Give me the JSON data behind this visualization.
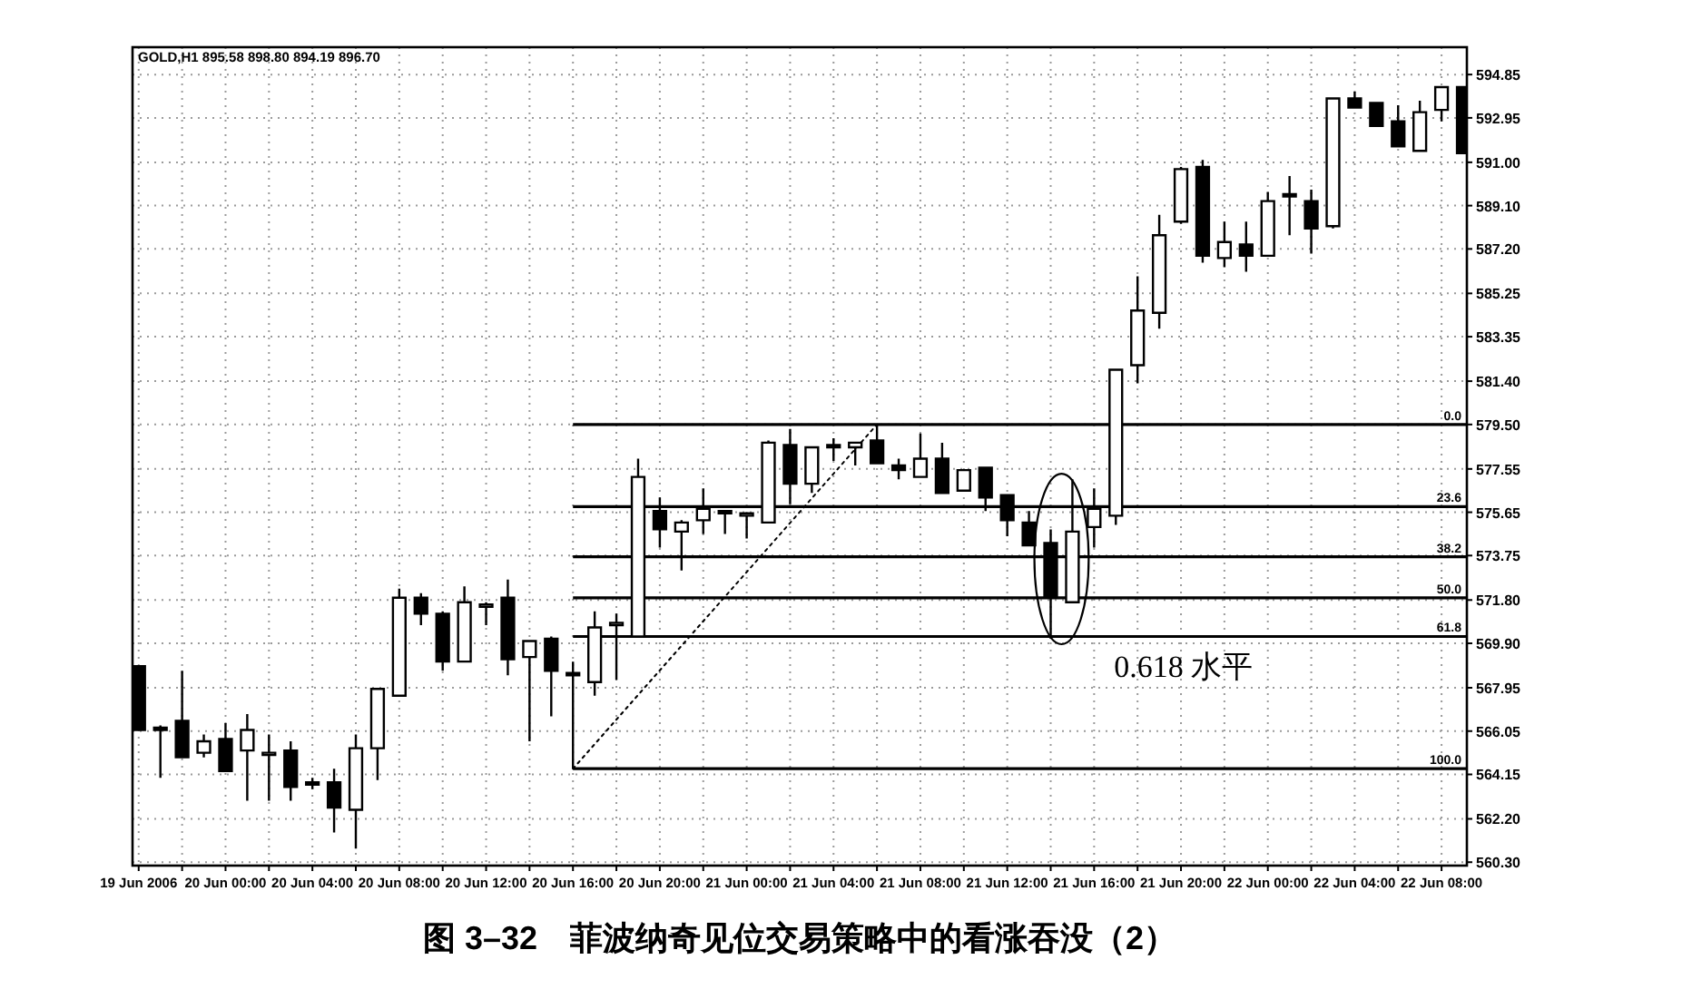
{
  "chart_data": {
    "type": "candlestick",
    "title": "图 3–32　菲波纳奇见位交易策略中的看涨吞没（2）",
    "subtitle": "GOLD,H1 895.58 898.80 894.19 896.70",
    "annotations": [
      {
        "text": "0.0",
        "y": 579.5
      },
      {
        "text": "23.6",
        "y": 575.9
      },
      {
        "text": "38.2",
        "y": 573.7
      },
      {
        "text": "50.0",
        "y": 571.9
      },
      {
        "text": "61.8",
        "y": 570.2
      },
      {
        "text": "100.0",
        "y": 564.4
      },
      "0.618 水平"
    ],
    "x": [
      "2006-06-19T20:00",
      "2006-06-19T21:00",
      "2006-06-19T22:00",
      "2006-06-19T23:00",
      "2006-06-20T00:00",
      "2006-06-20T01:00",
      "2006-06-20T02:00",
      "2006-06-20T03:00",
      "2006-06-20T04:00",
      "2006-06-20T05:00",
      "2006-06-20T06:00",
      "2006-06-20T07:00",
      "2006-06-20T08:00",
      "2006-06-20T09:00",
      "2006-06-20T10:00",
      "2006-06-20T11:00",
      "2006-06-20T12:00",
      "2006-06-20T13:00",
      "2006-06-20T14:00",
      "2006-06-20T15:00",
      "2006-06-20T16:00",
      "2006-06-20T17:00",
      "2006-06-20T18:00",
      "2006-06-20T19:00",
      "2006-06-20T20:00",
      "2006-06-20T21:00",
      "2006-06-20T22:00",
      "2006-06-20T23:00",
      "2006-06-21T00:00",
      "2006-06-21T01:00",
      "2006-06-21T02:00",
      "2006-06-21T03:00",
      "2006-06-21T04:00",
      "2006-06-21T05:00",
      "2006-06-21T06:00",
      "2006-06-21T07:00",
      "2006-06-21T08:00",
      "2006-06-21T09:00",
      "2006-06-21T10:00",
      "2006-06-21T11:00",
      "2006-06-21T12:00",
      "2006-06-21T13:00",
      "2006-06-21T14:00",
      "2006-06-21T15:00",
      "2006-06-21T16:00",
      "2006-06-21T17:00",
      "2006-06-21T18:00",
      "2006-06-21T19:00",
      "2006-06-21T20:00",
      "2006-06-21T21:00",
      "2006-06-21T22:00",
      "2006-06-21T23:00",
      "2006-06-22T00:00",
      "2006-06-22T01:00",
      "2006-06-22T02:00",
      "2006-06-22T03:00",
      "2006-06-22T04:00",
      "2006-06-22T05:00",
      "2006-06-22T06:00",
      "2006-06-22T07:00",
      "2006-06-22T08:00",
      "2006-06-22T09:00"
    ],
    "ohlc": [
      [
        568.9,
        568.9,
        566.1,
        566.1
      ],
      [
        566.1,
        566.3,
        564.0,
        566.2
      ],
      [
        566.5,
        568.7,
        564.9,
        564.9
      ],
      [
        565.1,
        565.9,
        564.9,
        565.6
      ],
      [
        565.7,
        566.4,
        564.3,
        564.3
      ],
      [
        565.2,
        566.8,
        563.0,
        566.1
      ],
      [
        565.0,
        565.9,
        563.0,
        565.1
      ],
      [
        565.2,
        565.6,
        563.0,
        563.6
      ],
      [
        563.7,
        564.0,
        563.5,
        563.8
      ],
      [
        563.8,
        564.4,
        561.6,
        562.7
      ],
      [
        562.6,
        565.9,
        560.9,
        565.3
      ],
      [
        565.3,
        567.9,
        563.9,
        567.9
      ],
      [
        567.6,
        572.3,
        567.6,
        571.9
      ],
      [
        571.9,
        572.1,
        570.7,
        571.2
      ],
      [
        571.2,
        571.3,
        568.7,
        569.1
      ],
      [
        569.1,
        572.4,
        569.1,
        571.7
      ],
      [
        571.5,
        571.7,
        570.7,
        571.6
      ],
      [
        571.9,
        572.7,
        568.5,
        569.2
      ],
      [
        569.3,
        570.0,
        565.6,
        570.0
      ],
      [
        570.1,
        570.2,
        566.7,
        568.7
      ],
      [
        568.5,
        569.1,
        564.4,
        568.6
      ],
      [
        568.2,
        571.3,
        567.6,
        570.6
      ],
      [
        570.7,
        571.2,
        568.3,
        570.8
      ],
      [
        570.2,
        578.0,
        570.2,
        577.2
      ],
      [
        575.7,
        576.3,
        574.1,
        574.9
      ],
      [
        574.8,
        575.3,
        573.1,
        575.2
      ],
      [
        575.3,
        576.7,
        574.7,
        575.8
      ],
      [
        575.7,
        575.7,
        574.7,
        575.6
      ],
      [
        575.5,
        575.6,
        574.5,
        575.6
      ],
      [
        575.2,
        578.8,
        575.2,
        578.7
      ],
      [
        578.6,
        579.3,
        576.0,
        576.9
      ],
      [
        576.9,
        578.5,
        576.5,
        578.5
      ],
      [
        578.5,
        578.9,
        577.9,
        578.6
      ],
      [
        578.5,
        578.7,
        577.7,
        578.7
      ],
      [
        578.8,
        579.5,
        577.8,
        577.8
      ],
      [
        577.7,
        578.0,
        577.1,
        577.5
      ],
      [
        577.2,
        579.1,
        577.2,
        578.0
      ],
      [
        578.0,
        578.7,
        576.5,
        576.5
      ],
      [
        576.6,
        577.5,
        576.6,
        577.5
      ],
      [
        577.6,
        577.6,
        575.7,
        576.3
      ],
      [
        576.4,
        576.4,
        574.6,
        575.3
      ],
      [
        575.2,
        575.7,
        574.2,
        574.2
      ],
      [
        574.3,
        574.9,
        570.1,
        571.9
      ],
      [
        571.7,
        577.1,
        571.7,
        574.8
      ],
      [
        575.0,
        576.7,
        574.1,
        575.8
      ],
      [
        575.5,
        581.9,
        575.1,
        581.9
      ],
      [
        582.1,
        586.0,
        581.3,
        584.5
      ],
      [
        584.4,
        588.7,
        583.7,
        587.8
      ],
      [
        588.4,
        590.8,
        588.3,
        590.7
      ],
      [
        590.8,
        591.1,
        586.6,
        586.9
      ],
      [
        586.8,
        588.4,
        586.4,
        587.5
      ],
      [
        587.4,
        588.4,
        586.2,
        586.9
      ],
      [
        586.9,
        589.7,
        586.9,
        589.3
      ],
      [
        589.5,
        590.4,
        587.8,
        589.6
      ],
      [
        589.3,
        589.8,
        587.0,
        588.1
      ],
      [
        588.2,
        593.8,
        588.1,
        593.8
      ],
      [
        593.8,
        594.1,
        593.4,
        593.4
      ],
      [
        593.6,
        593.6,
        592.6,
        592.6
      ],
      [
        592.8,
        593.5,
        591.7,
        591.7
      ],
      [
        591.5,
        593.7,
        591.5,
        593.2
      ],
      [
        593.3,
        594.3,
        592.8,
        594.3
      ],
      [
        594.3,
        594.3,
        591.4,
        591.4
      ]
    ],
    "series": [
      {
        "type": "line",
        "x": [
          "2006-06-20T16:00",
          "2006-06-21T06:00"
        ],
        "values": [
          564.4,
          579.5
        ],
        "color": "#000000",
        "line_style": "dotted"
      }
    ],
    "xlim": [
      "2006-06-19T19:43",
      "2006-06-22T09:10"
    ],
    "xticks": [
      {
        "value": "2006-06-19T20:00",
        "label": "19 Jun 2006"
      },
      {
        "value": "2006-06-19T22:00",
        "label": null
      },
      {
        "value": "2006-06-20T00:00",
        "label": "20 Jun 00:00"
      },
      {
        "value": "2006-06-20T02:00",
        "label": null
      },
      {
        "value": "2006-06-20T04:00",
        "label": "20 Jun 04:00"
      },
      {
        "value": "2006-06-20T06:00",
        "label": null
      },
      {
        "value": "2006-06-20T08:00",
        "label": "20 Jun 08:00"
      },
      {
        "value": "2006-06-20T10:00",
        "label": null
      },
      {
        "value": "2006-06-20T12:00",
        "label": "20 Jun 12:00"
      },
      {
        "value": "2006-06-20T14:00",
        "label": null
      },
      {
        "value": "2006-06-20T16:00",
        "label": "20 Jun 16:00"
      },
      {
        "value": "2006-06-20T18:00",
        "label": null
      },
      {
        "value": "2006-06-20T20:00",
        "label": "20 Jun 20:00"
      },
      {
        "value": "2006-06-20T22:00",
        "label": null
      },
      {
        "value": "2006-06-21T00:00",
        "label": "21 Jun 00:00"
      },
      {
        "value": "2006-06-21T02:00",
        "label": null
      },
      {
        "value": "2006-06-21T04:00",
        "label": "21 Jun 04:00"
      },
      {
        "value": "2006-06-21T06:00",
        "label": null
      },
      {
        "value": "2006-06-21T08:00",
        "label": "21 Jun 08:00"
      },
      {
        "value": "2006-06-21T10:00",
        "label": null
      },
      {
        "value": "2006-06-21T12:00",
        "label": "21 Jun 12:00"
      },
      {
        "value": "2006-06-21T14:00",
        "label": null
      },
      {
        "value": "2006-06-21T16:00",
        "label": "21 Jun 16:00"
      },
      {
        "value": "2006-06-21T18:00",
        "label": null
      },
      {
        "value": "2006-06-21T20:00",
        "label": "21 Jun 20:00"
      },
      {
        "value": "2006-06-21T22:00",
        "label": null
      },
      {
        "value": "2006-06-22T00:00",
        "label": "22 Jun 00:00"
      },
      {
        "value": "2006-06-22T02:00",
        "label": null
      },
      {
        "value": "2006-06-22T04:00",
        "label": "22 Jun 04:00"
      },
      {
        "value": "2006-06-22T06:00",
        "label": null
      },
      {
        "value": "2006-06-22T08:00",
        "label": "22 Jun 08:00"
      }
    ],
    "ylim": [
      560.15,
      596.05
    ],
    "yticks": [
      {
        "value": 560.3,
        "label": "560.30"
      },
      {
        "value": 562.2,
        "label": "562.20"
      },
      564.15,
      566.05,
      567.95,
      {
        "value": 569.9,
        "label": "569.90"
      },
      {
        "value": 571.8,
        "label": "571.80"
      },
      573.75,
      575.65,
      577.55,
      {
        "value": 579.5,
        "label": "579.50"
      },
      {
        "value": 581.4,
        "label": "581.40"
      },
      583.35,
      585.25,
      {
        "value": 587.2,
        "label": "587.20"
      },
      {
        "value": 589.1,
        "label": "589.10"
      },
      {
        "value": 591,
        "label": "591.00"
      },
      592.95,
      594.85
    ],
    "grid": true,
    "ref_lines": [
      {
        "axis": "y",
        "value": 579.5,
        "color": "#000000"
      },
      {
        "axis": "y",
        "value": 575.9,
        "color": "#000000"
      },
      {
        "axis": "y",
        "value": 573.7,
        "color": "#000000"
      },
      {
        "axis": "y",
        "value": 571.9,
        "color": "#000000"
      },
      {
        "axis": "y",
        "value": 570.2,
        "color": "#000000"
      },
      {
        "axis": "y",
        "value": 564.4,
        "color": "#000000"
      }
    ]
  }
}
